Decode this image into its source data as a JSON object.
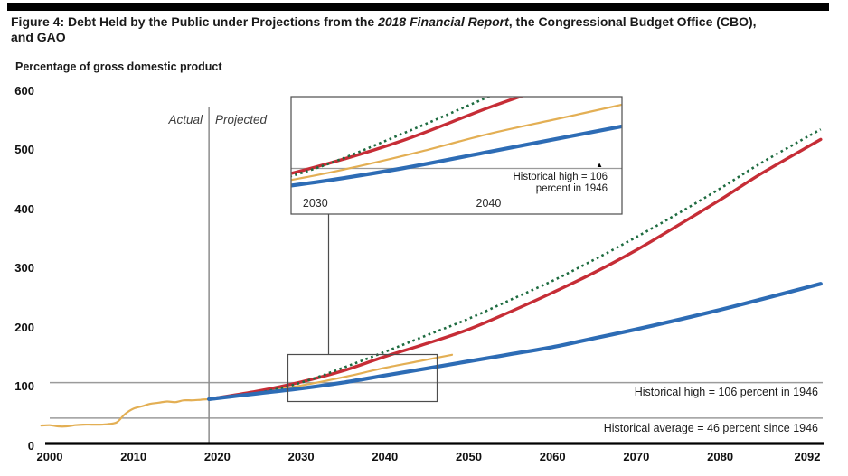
{
  "figure": {
    "title_line1_prefix": "Figure 4: Debt Held by the Public under Projections from the ",
    "title_line1_italic": "2018 Financial Report",
    "title_line1_suffix": ", the Congressional Budget Office (CBO),",
    "title_line2": "and GAO"
  },
  "labels": {
    "y_axis_title": "Percentage of gross domestic product",
    "actual": "Actual",
    "projected": "Projected",
    "historical_high": "Historical high = 106 percent in 1946",
    "historical_average": "Historical average = 46 percent since 1946"
  },
  "chart_data": {
    "type": "line",
    "title": "Figure 4: Debt Held by the Public under Projections from the 2018 Financial Report, the Congressional Budget Office (CBO), and GAO",
    "ylabel": "Percentage of gross domestic product",
    "xlabel": "",
    "xlim": [
      1999,
      2093
    ],
    "ylim": [
      0,
      600
    ],
    "x_ticks": [
      2000,
      2010,
      2020,
      2030,
      2040,
      2050,
      2060,
      2070,
      2080,
      2092
    ],
    "y_ticks": [
      0,
      100,
      200,
      300,
      400,
      500,
      600
    ],
    "grid": false,
    "legend": "none",
    "divider": {
      "year": 2019,
      "actual_label": "Actual",
      "projected_label": "Projected"
    },
    "reference_lines": [
      {
        "value": 106,
        "label": "Historical high = 106 percent in 1946"
      },
      {
        "value": 46,
        "label": "Historical average = 46 percent since 1946"
      }
    ],
    "series": [
      {
        "name": "gold-actual-and-projection",
        "color": "#e3af54",
        "style": "solid",
        "width": 2.2,
        "points": [
          [
            1999,
            33.5
          ],
          [
            2000,
            34
          ],
          [
            2001,
            32
          ],
          [
            2002,
            32
          ],
          [
            2003,
            34
          ],
          [
            2004,
            35
          ],
          [
            2005,
            35
          ],
          [
            2006,
            35
          ],
          [
            2007,
            36
          ],
          [
            2008,
            39
          ],
          [
            2009,
            53
          ],
          [
            2010,
            62
          ],
          [
            2011,
            66
          ],
          [
            2012,
            70
          ],
          [
            2013,
            72
          ],
          [
            2014,
            74
          ],
          [
            2015,
            73
          ],
          [
            2016,
            76
          ],
          [
            2017,
            76
          ],
          [
            2018,
            77
          ],
          [
            2019,
            78
          ],
          [
            2021,
            81
          ],
          [
            2024,
            87
          ],
          [
            2027,
            94
          ],
          [
            2030,
            101
          ],
          [
            2033,
            109
          ],
          [
            2036,
            118
          ],
          [
            2040,
            131
          ],
          [
            2044,
            142
          ],
          [
            2048,
            153
          ]
        ]
      },
      {
        "name": "red-projection",
        "color": "#c62d36",
        "style": "solid",
        "width": 3.4,
        "points": [
          [
            2019,
            78
          ],
          [
            2025,
            92
          ],
          [
            2030,
            107
          ],
          [
            2035,
            126
          ],
          [
            2040,
            150
          ],
          [
            2045,
            172
          ],
          [
            2050,
            196
          ],
          [
            2055,
            226
          ],
          [
            2060,
            258
          ],
          [
            2065,
            292
          ],
          [
            2070,
            330
          ],
          [
            2075,
            372
          ],
          [
            2080,
            415
          ],
          [
            2085,
            460
          ],
          [
            2092,
            517
          ]
        ]
      },
      {
        "name": "green-dotted-projection",
        "color": "#1e6b40",
        "style": "dotted",
        "width": 2.6,
        "points": [
          [
            2019,
            77
          ],
          [
            2025,
            89
          ],
          [
            2030,
            106
          ],
          [
            2035,
            131
          ],
          [
            2040,
            158
          ],
          [
            2045,
            186
          ],
          [
            2050,
            214
          ],
          [
            2055,
            246
          ],
          [
            2060,
            278
          ],
          [
            2065,
            314
          ],
          [
            2070,
            352
          ],
          [
            2075,
            392
          ],
          [
            2080,
            434
          ],
          [
            2085,
            478
          ],
          [
            2092,
            534
          ]
        ]
      },
      {
        "name": "blue-projection",
        "color": "#2d6cb5",
        "style": "solid",
        "width": 4.2,
        "points": [
          [
            2019,
            78
          ],
          [
            2025,
            88
          ],
          [
            2030,
            96
          ],
          [
            2035,
            106
          ],
          [
            2040,
            118
          ],
          [
            2045,
            130
          ],
          [
            2050,
            142
          ],
          [
            2055,
            154
          ],
          [
            2060,
            166
          ],
          [
            2065,
            181
          ],
          [
            2070,
            196
          ],
          [
            2075,
            212
          ],
          [
            2080,
            229
          ],
          [
            2085,
            247
          ],
          [
            2092,
            273
          ]
        ]
      }
    ],
    "inset": {
      "x_ticks": [
        2030,
        2040
      ],
      "x_range": [
        2028.6,
        2047.7
      ],
      "y_range": [
        73,
        158
      ],
      "reference_value": 106,
      "annotation_line1": "Historical high = 106",
      "annotation_line2": "percent in 1946",
      "marker": "▲"
    }
  }
}
